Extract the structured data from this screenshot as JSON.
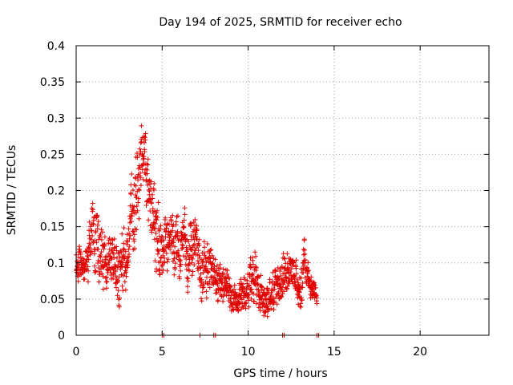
{
  "chart_data": {
    "type": "scatter",
    "title": "Day 194 of 2025, SRMTID for receiver echo",
    "xlabel": "GPS time / hours",
    "ylabel": "SRMTID / TECUs",
    "xlim": [
      0,
      24
    ],
    "ylim": [
      0,
      0.4
    ],
    "grid": true,
    "marker": "+",
    "color": "#e00000",
    "x_ticks": [
      0,
      5,
      10,
      15,
      20
    ],
    "x_tick_labels": [
      "0",
      "5",
      "10",
      "15",
      "20"
    ],
    "y_ticks": [
      0,
      0.05,
      0.1,
      0.15,
      0.2,
      0.25,
      0.3,
      0.35,
      0.4
    ],
    "y_tick_labels": [
      "0",
      "0.05",
      "0.1",
      "0.15",
      "0.2",
      "0.25",
      "0.3",
      "0.35",
      "0.4"
    ],
    "trend": [
      {
        "x": 0.0,
        "y": 0.1,
        "spread": 0.035
      },
      {
        "x": 0.5,
        "y": 0.09,
        "spread": 0.03
      },
      {
        "x": 1.0,
        "y": 0.13,
        "spread": 0.06
      },
      {
        "x": 1.5,
        "y": 0.11,
        "spread": 0.05
      },
      {
        "x": 2.0,
        "y": 0.1,
        "spread": 0.04
      },
      {
        "x": 2.5,
        "y": 0.09,
        "spread": 0.06
      },
      {
        "x": 3.0,
        "y": 0.12,
        "spread": 0.05
      },
      {
        "x": 3.5,
        "y": 0.21,
        "spread": 0.08
      },
      {
        "x": 3.8,
        "y": 0.28,
        "spread": 0.07
      },
      {
        "x": 4.2,
        "y": 0.19,
        "spread": 0.06
      },
      {
        "x": 4.6,
        "y": 0.15,
        "spread": 0.07
      },
      {
        "x": 5.0,
        "y": 0.11,
        "spread": 0.05
      },
      {
        "x": 5.5,
        "y": 0.13,
        "spread": 0.05
      },
      {
        "x": 6.0,
        "y": 0.12,
        "spread": 0.05
      },
      {
        "x": 6.5,
        "y": 0.13,
        "spread": 0.06
      },
      {
        "x": 7.0,
        "y": 0.1,
        "spread": 0.05
      },
      {
        "x": 7.5,
        "y": 0.09,
        "spread": 0.05
      },
      {
        "x": 8.0,
        "y": 0.09,
        "spread": 0.05
      },
      {
        "x": 8.5,
        "y": 0.07,
        "spread": 0.035
      },
      {
        "x": 9.0,
        "y": 0.06,
        "spread": 0.03
      },
      {
        "x": 9.5,
        "y": 0.05,
        "spread": 0.03
      },
      {
        "x": 10.0,
        "y": 0.06,
        "spread": 0.03
      },
      {
        "x": 10.3,
        "y": 0.09,
        "spread": 0.05
      },
      {
        "x": 10.6,
        "y": 0.06,
        "spread": 0.03
      },
      {
        "x": 11.0,
        "y": 0.05,
        "spread": 0.03
      },
      {
        "x": 11.5,
        "y": 0.06,
        "spread": 0.03
      },
      {
        "x": 12.0,
        "y": 0.08,
        "spread": 0.035
      },
      {
        "x": 12.5,
        "y": 0.09,
        "spread": 0.035
      },
      {
        "x": 13.0,
        "y": 0.07,
        "spread": 0.035
      },
      {
        "x": 13.3,
        "y": 0.1,
        "spread": 0.03
      },
      {
        "x": 13.6,
        "y": 0.06,
        "spread": 0.025
      },
      {
        "x": 14.0,
        "y": 0.06,
        "spread": 0.02
      }
    ],
    "points_per_hour": 95,
    "baseline_markers_x": [
      5.0,
      5.1,
      7.2,
      8.0,
      8.1,
      12.0,
      12.1,
      14.0,
      14.1
    ]
  }
}
